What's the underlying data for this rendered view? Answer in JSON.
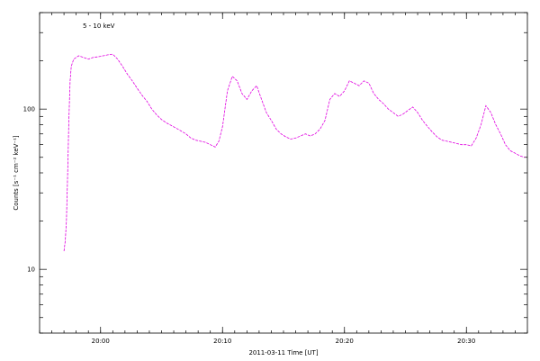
{
  "chart_data": {
    "type": "line",
    "legend": "5 - 10 keV",
    "xlabel": "2011-03-11  Time [UT]",
    "ylabel": "Counts [s⁻¹ cm⁻² keV⁻¹]",
    "y_scale": "log",
    "xlim": [
      19.5,
      21.5
    ],
    "ylim": [
      4,
      400
    ],
    "x_ticks": [
      {
        "value": 19.75,
        "label": "20:00"
      },
      {
        "value": 20.25,
        "label": "20:10"
      },
      {
        "value": 20.75,
        "label": "20:20"
      },
      {
        "value": 21.25,
        "label": "20:30"
      }
    ],
    "y_ticks": [
      {
        "value": 10,
        "label": "10"
      },
      {
        "value": 100,
        "label": "100"
      }
    ],
    "colors": {
      "series": "#e000e0",
      "axis": "#000000"
    },
    "series": [
      {
        "name": "5 - 10 keV",
        "x": [
          19.6,
          19.605,
          19.61,
          19.615,
          19.62,
          19.625,
          19.63,
          19.64,
          19.66,
          19.68,
          19.7,
          19.72,
          19.74,
          19.76,
          19.78,
          19.8,
          19.82,
          19.84,
          19.86,
          19.88,
          19.9,
          19.92,
          19.94,
          19.96,
          19.98,
          20.0,
          20.02,
          20.04,
          20.06,
          20.08,
          20.1,
          20.12,
          20.14,
          20.16,
          20.18,
          20.2,
          20.22,
          20.235,
          20.25,
          20.27,
          20.29,
          20.31,
          20.33,
          20.35,
          20.37,
          20.39,
          20.41,
          20.43,
          20.45,
          20.47,
          20.49,
          20.51,
          20.53,
          20.55,
          20.57,
          20.59,
          20.61,
          20.63,
          20.65,
          20.67,
          20.69,
          20.71,
          20.73,
          20.75,
          20.77,
          20.79,
          20.81,
          20.83,
          20.85,
          20.87,
          20.89,
          20.91,
          20.93,
          20.95,
          20.97,
          20.99,
          21.01,
          21.03,
          21.05,
          21.07,
          21.09,
          21.11,
          21.13,
          21.15,
          21.17,
          21.19,
          21.21,
          21.23,
          21.25,
          21.27,
          21.29,
          21.31,
          21.33,
          21.35,
          21.37,
          21.39,
          21.41,
          21.43,
          21.45,
          21.47,
          21.49
        ],
        "y": [
          13,
          15,
          20,
          40,
          85,
          150,
          185,
          205,
          215,
          210,
          205,
          210,
          212,
          215,
          218,
          220,
          205,
          185,
          165,
          150,
          135,
          122,
          112,
          100,
          92,
          86,
          82,
          79,
          76,
          73,
          70,
          66,
          64,
          63,
          62,
          60,
          58,
          63,
          78,
          130,
          160,
          150,
          125,
          115,
          130,
          140,
          115,
          95,
          85,
          75,
          70,
          67,
          65,
          66,
          68,
          70,
          68,
          70,
          75,
          85,
          115,
          125,
          120,
          130,
          150,
          145,
          140,
          150,
          145,
          125,
          115,
          108,
          100,
          95,
          90,
          93,
          98,
          103,
          95,
          85,
          78,
          72,
          67,
          64,
          63,
          62,
          61,
          60,
          60,
          59,
          66,
          80,
          105,
          95,
          80,
          70,
          60,
          55,
          53,
          51,
          50
        ]
      }
    ]
  }
}
